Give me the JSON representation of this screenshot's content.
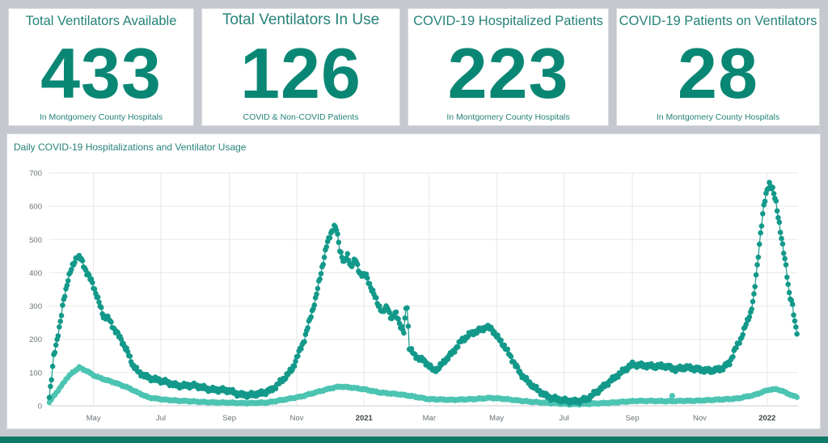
{
  "kpis": [
    {
      "title": "Total Ventilators Available",
      "value": "433",
      "subtitle": "In Montgomery County Hospitals"
    },
    {
      "title": "Total Ventilators In Use",
      "value": "126",
      "subtitle": "COVID & Non-COVID Patients"
    },
    {
      "title": "COVID-19 Hospitalized Patients",
      "value": "223",
      "subtitle": "In Montgomery County Hospitals"
    },
    {
      "title": "COVID-19 Patients on Ventilators",
      "value": "28",
      "subtitle": "In Montgomery County Hospitals"
    }
  ],
  "colors": {
    "kpi_value": "#0a8774",
    "hospitalized": "#13998a",
    "ventilators": "#4cc4b2",
    "frame": "#0f7a68"
  },
  "chart_data": {
    "type": "line",
    "title": "Daily COVID-19 Hospitalizations and Ventilator Usage",
    "xlabel": "",
    "ylabel": "",
    "ylim": [
      0,
      700
    ],
    "yticks": [
      0,
      100,
      200,
      300,
      400,
      500,
      600,
      700
    ],
    "xlim": [
      "2020-03-22",
      "2022-01-29"
    ],
    "xticks": [
      {
        "date": "2020-05-01",
        "label": "May",
        "bold": false
      },
      {
        "date": "2020-07-01",
        "label": "Jul",
        "bold": false
      },
      {
        "date": "2020-09-01",
        "label": "Sep",
        "bold": false
      },
      {
        "date": "2020-11-01",
        "label": "Nov",
        "bold": false
      },
      {
        "date": "2021-01-01",
        "label": "2021",
        "bold": true
      },
      {
        "date": "2021-03-01",
        "label": "Mar",
        "bold": false
      },
      {
        "date": "2021-05-01",
        "label": "May",
        "bold": false
      },
      {
        "date": "2021-07-01",
        "label": "Jul",
        "bold": false
      },
      {
        "date": "2021-09-01",
        "label": "Sep",
        "bold": false
      },
      {
        "date": "2021-11-01",
        "label": "Nov",
        "bold": false
      },
      {
        "date": "2022-01-01",
        "label": "2022",
        "bold": true
      }
    ],
    "grid": true,
    "series": [
      {
        "key": "hospitalized",
        "color": "#13998a",
        "points": [
          [
            "2020-03-22",
            25
          ],
          [
            "2020-03-24",
            80
          ],
          [
            "2020-03-26",
            150
          ],
          [
            "2020-03-29",
            200
          ],
          [
            "2020-04-01",
            250
          ],
          [
            "2020-04-04",
            320
          ],
          [
            "2020-04-08",
            380
          ],
          [
            "2020-04-12",
            420
          ],
          [
            "2020-04-16",
            450
          ],
          [
            "2020-04-20",
            440
          ],
          [
            "2020-04-25",
            400
          ],
          [
            "2020-04-30",
            370
          ],
          [
            "2020-05-05",
            320
          ],
          [
            "2020-05-10",
            270
          ],
          [
            "2020-05-15",
            260
          ],
          [
            "2020-05-20",
            230
          ],
          [
            "2020-05-26",
            200
          ],
          [
            "2020-06-01",
            160
          ],
          [
            "2020-06-06",
            120
          ],
          [
            "2020-06-11",
            100
          ],
          [
            "2020-06-20",
            85
          ],
          [
            "2020-07-01",
            75
          ],
          [
            "2020-07-15",
            62
          ],
          [
            "2020-08-01",
            60
          ],
          [
            "2020-08-15",
            50
          ],
          [
            "2020-09-01",
            45
          ],
          [
            "2020-09-10",
            35
          ],
          [
            "2020-09-20",
            32
          ],
          [
            "2020-10-01",
            38
          ],
          [
            "2020-10-10",
            50
          ],
          [
            "2020-10-20",
            80
          ],
          [
            "2020-10-28",
            110
          ],
          [
            "2020-11-03",
            160
          ],
          [
            "2020-11-08",
            200
          ],
          [
            "2020-11-13",
            260
          ],
          [
            "2020-11-18",
            320
          ],
          [
            "2020-11-23",
            400
          ],
          [
            "2020-11-28",
            480
          ],
          [
            "2020-12-02",
            520
          ],
          [
            "2020-12-05",
            540
          ],
          [
            "2020-12-07",
            530
          ],
          [
            "2020-12-10",
            470
          ],
          [
            "2020-12-14",
            430
          ],
          [
            "2020-12-17",
            450
          ],
          [
            "2020-12-20",
            420
          ],
          [
            "2020-12-24",
            440
          ],
          [
            "2020-12-28",
            400
          ],
          [
            "2021-01-03",
            390
          ],
          [
            "2021-01-08",
            350
          ],
          [
            "2021-01-13",
            310
          ],
          [
            "2021-01-18",
            280
          ],
          [
            "2021-01-22",
            300
          ],
          [
            "2021-01-26",
            260
          ],
          [
            "2021-01-30",
            280
          ],
          [
            "2021-02-03",
            240
          ],
          [
            "2021-02-06",
            220
          ],
          [
            "2021-02-08",
            295
          ],
          [
            "2021-02-09",
            300
          ],
          [
            "2021-02-11",
            175
          ],
          [
            "2021-02-16",
            150
          ],
          [
            "2021-02-22",
            140
          ],
          [
            "2021-02-28",
            125
          ],
          [
            "2021-03-05",
            105
          ],
          [
            "2021-03-10",
            115
          ],
          [
            "2021-03-15",
            135
          ],
          [
            "2021-03-22",
            160
          ],
          [
            "2021-03-30",
            195
          ],
          [
            "2021-04-07",
            215
          ],
          [
            "2021-04-14",
            225
          ],
          [
            "2021-04-22",
            238
          ],
          [
            "2021-04-27",
            230
          ],
          [
            "2021-05-02",
            205
          ],
          [
            "2021-05-08",
            180
          ],
          [
            "2021-05-15",
            140
          ],
          [
            "2021-05-22",
            100
          ],
          [
            "2021-05-30",
            70
          ],
          [
            "2021-06-08",
            45
          ],
          [
            "2021-06-18",
            25
          ],
          [
            "2021-07-01",
            15
          ],
          [
            "2021-07-12",
            14
          ],
          [
            "2021-07-22",
            20
          ],
          [
            "2021-08-01",
            45
          ],
          [
            "2021-08-10",
            70
          ],
          [
            "2021-08-20",
            95
          ],
          [
            "2021-08-28",
            115
          ],
          [
            "2021-09-01",
            125
          ],
          [
            "2021-09-10",
            122
          ],
          [
            "2021-09-20",
            118
          ],
          [
            "2021-10-01",
            120
          ],
          [
            "2021-10-10",
            110
          ],
          [
            "2021-10-20",
            115
          ],
          [
            "2021-11-01",
            110
          ],
          [
            "2021-11-10",
            105
          ],
          [
            "2021-11-20",
            110
          ],
          [
            "2021-11-28",
            130
          ],
          [
            "2021-12-03",
            170
          ],
          [
            "2021-12-08",
            200
          ],
          [
            "2021-12-13",
            245
          ],
          [
            "2021-12-17",
            280
          ],
          [
            "2021-12-20",
            330
          ],
          [
            "2021-12-23",
            420
          ],
          [
            "2021-12-26",
            520
          ],
          [
            "2021-12-29",
            600
          ],
          [
            "2022-01-01",
            650
          ],
          [
            "2022-01-03",
            670
          ],
          [
            "2022-01-06",
            650
          ],
          [
            "2022-01-09",
            610
          ],
          [
            "2022-01-12",
            550
          ],
          [
            "2022-01-15",
            480
          ],
          [
            "2022-01-18",
            420
          ],
          [
            "2022-01-21",
            340
          ],
          [
            "2022-01-24",
            300
          ],
          [
            "2022-01-26",
            250
          ],
          [
            "2022-01-28",
            223
          ]
        ]
      },
      {
        "key": "ventilators",
        "color": "#4cc4b2",
        "points": [
          [
            "2020-03-22",
            10
          ],
          [
            "2020-03-26",
            30
          ],
          [
            "2020-04-01",
            55
          ],
          [
            "2020-04-06",
            80
          ],
          [
            "2020-04-12",
            100
          ],
          [
            "2020-04-18",
            115
          ],
          [
            "2020-04-25",
            105
          ],
          [
            "2020-05-02",
            90
          ],
          [
            "2020-05-10",
            80
          ],
          [
            "2020-05-20",
            70
          ],
          [
            "2020-06-01",
            55
          ],
          [
            "2020-06-10",
            40
          ],
          [
            "2020-06-20",
            25
          ],
          [
            "2020-07-05",
            18
          ],
          [
            "2020-07-20",
            15
          ],
          [
            "2020-08-05",
            12
          ],
          [
            "2020-08-20",
            10
          ],
          [
            "2020-09-05",
            9
          ],
          [
            "2020-09-20",
            8
          ],
          [
            "2020-10-05",
            10
          ],
          [
            "2020-10-20",
            18
          ],
          [
            "2020-11-05",
            28
          ],
          [
            "2020-11-20",
            42
          ],
          [
            "2020-12-01",
            52
          ],
          [
            "2020-12-10",
            58
          ],
          [
            "2020-12-20",
            55
          ],
          [
            "2021-01-01",
            50
          ],
          [
            "2021-01-15",
            40
          ],
          [
            "2021-02-01",
            35
          ],
          [
            "2021-02-15",
            28
          ],
          [
            "2021-03-01",
            20
          ],
          [
            "2021-03-20",
            18
          ],
          [
            "2021-04-10",
            20
          ],
          [
            "2021-04-25",
            24
          ],
          [
            "2021-05-10",
            20
          ],
          [
            "2021-06-01",
            12
          ],
          [
            "2021-06-20",
            8
          ],
          [
            "2021-07-05",
            5
          ],
          [
            "2021-07-25",
            6
          ],
          [
            "2021-08-15",
            10
          ],
          [
            "2021-09-05",
            15
          ],
          [
            "2021-10-01",
            14
          ],
          [
            "2021-10-25",
            15
          ],
          [
            "2021-11-15",
            18
          ],
          [
            "2021-12-05",
            22
          ],
          [
            "2021-12-20",
            32
          ],
          [
            "2022-01-02",
            48
          ],
          [
            "2022-01-10",
            50
          ],
          [
            "2022-01-18",
            40
          ],
          [
            "2022-01-24",
            30
          ],
          [
            "2022-01-28",
            28
          ]
        ]
      }
    ],
    "outliers": [
      {
        "series": "ventilators",
        "date": "2021-10-07",
        "value": 30
      }
    ]
  }
}
